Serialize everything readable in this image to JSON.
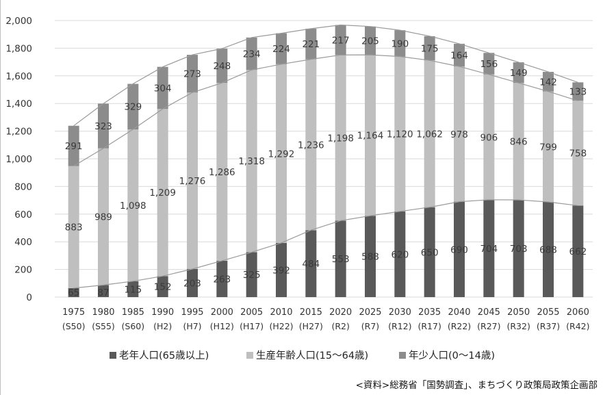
{
  "chart_data": {
    "type": "bar",
    "stacked": true,
    "categories": [
      {
        "year": "1975",
        "era": "(S50)"
      },
      {
        "year": "1980",
        "era": "(S55)"
      },
      {
        "year": "1985",
        "era": "(S60)"
      },
      {
        "year": "1990",
        "era": "(H2)"
      },
      {
        "year": "1995",
        "era": "(H7)"
      },
      {
        "year": "2000",
        "era": "(H12)"
      },
      {
        "year": "2005",
        "era": "(H17)"
      },
      {
        "year": "2010",
        "era": "(H22)"
      },
      {
        "year": "2015",
        "era": "(H27)"
      },
      {
        "year": "2020",
        "era": "(R2)"
      },
      {
        "year": "2025",
        "era": "(R7)"
      },
      {
        "year": "2030",
        "era": "(R12)"
      },
      {
        "year": "2035",
        "era": "(R17)"
      },
      {
        "year": "2040",
        "era": "(R22)"
      },
      {
        "year": "2045",
        "era": "(R27)"
      },
      {
        "year": "2050",
        "era": "(R32)"
      },
      {
        "year": "2055",
        "era": "(R37)"
      },
      {
        "year": "2060",
        "era": "(R42)"
      }
    ],
    "series": [
      {
        "name": "老年人口(65歳以上)",
        "color": "#595959",
        "values": [
          65,
          87,
          115,
          152,
          203,
          263,
          325,
          392,
          484,
          553,
          588,
          620,
          650,
          690,
          704,
          703,
          688,
          662
        ]
      },
      {
        "name": "生産年齢人口(15〜64歳)",
        "color": "#bfbfbf",
        "values": [
          883,
          989,
          1098,
          1209,
          1276,
          1286,
          1318,
          1292,
          1236,
          1198,
          1164,
          1120,
          1062,
          978,
          906,
          846,
          799,
          758
        ]
      },
      {
        "name": "年少人口(0〜14歳)",
        "color": "#8c8c8c",
        "values": [
          291,
          323,
          329,
          304,
          273,
          248,
          234,
          224,
          221,
          217,
          205,
          190,
          175,
          164,
          156,
          149,
          142,
          133
        ]
      }
    ],
    "value_labels": {
      "series0": [
        "65",
        "87",
        "115",
        "152",
        "203",
        "263",
        "325",
        "392",
        "484",
        "553",
        "588",
        "620",
        "650",
        "690",
        "704",
        "703",
        "688",
        "662"
      ],
      "series1": [
        "883",
        "989",
        "1,098",
        "1,209",
        "1,276",
        "1,286",
        "1,318",
        "1,292",
        "1,236",
        "1,198",
        "1,164",
        "1,120",
        "1,062",
        "978",
        "906",
        "846",
        "799",
        "758"
      ],
      "series2": [
        "291",
        "323",
        "329",
        "304",
        "273",
        "248",
        "234",
        "224",
        "221",
        "217",
        "205",
        "190",
        "175",
        "164",
        "156",
        "149",
        "142",
        "133"
      ]
    },
    "yticks": [
      {
        "v": 0,
        "label": "0"
      },
      {
        "v": 200,
        "label": "200"
      },
      {
        "v": 400,
        "label": "400"
      },
      {
        "v": 600,
        "label": "600"
      },
      {
        "v": 800,
        "label": "800"
      },
      {
        "v": 1000,
        "label": "1,000"
      },
      {
        "v": 1200,
        "label": "1,200"
      },
      {
        "v": 1400,
        "label": "1,400"
      },
      {
        "v": 1600,
        "label": "1,600"
      },
      {
        "v": 1800,
        "label": "1,800"
      },
      {
        "v": 2000,
        "label": "2,000"
      }
    ],
    "ylim": [
      0,
      2000
    ],
    "grid": true,
    "legend_position": "bottom",
    "trend_lines": "connecting stack boundaries",
    "source": "<資料>総務省「国勢調査」、まちづくり政策局政策企画部"
  }
}
